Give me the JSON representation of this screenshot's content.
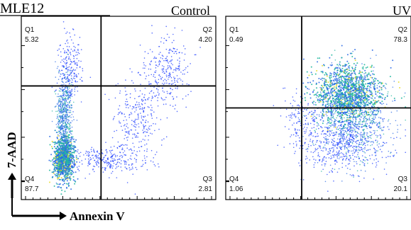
{
  "figure": {
    "cell_line": "MLE12",
    "x_axis_label": "Annexin V",
    "y_axis_label": "7-AAD"
  },
  "chart_data": [
    {
      "type": "scatter",
      "title": "Control",
      "xlabel": "Annexin V",
      "ylabel": "7-AAD",
      "quadrants": [
        {
          "name": "Q1",
          "value": "5.32"
        },
        {
          "name": "Q2",
          "value": "4.20"
        },
        {
          "name": "Q3",
          "value": "2.81"
        },
        {
          "name": "Q4",
          "value": "87.7"
        }
      ],
      "clusters": [
        {
          "x": 0.22,
          "y": 0.22,
          "sx": 0.025,
          "sy": 0.06,
          "n": 1100,
          "mode": "dense"
        },
        {
          "x": 0.22,
          "y": 0.45,
          "sx": 0.02,
          "sy": 0.12,
          "n": 650,
          "mode": "medium"
        },
        {
          "x": 0.25,
          "y": 0.72,
          "sx": 0.03,
          "sy": 0.1,
          "n": 220,
          "mode": "sparse"
        },
        {
          "x": 0.44,
          "y": 0.22,
          "sx": 0.09,
          "sy": 0.04,
          "n": 260,
          "mode": "sparse"
        },
        {
          "x": 0.6,
          "y": 0.43,
          "sx": 0.06,
          "sy": 0.13,
          "n": 280,
          "mode": "sparse"
        },
        {
          "x": 0.75,
          "y": 0.7,
          "sx": 0.06,
          "sy": 0.1,
          "n": 280,
          "mode": "sparse"
        }
      ],
      "gate_x_fraction": 0.41,
      "gate_y_fraction": 0.38
    },
    {
      "type": "scatter",
      "title": "UV",
      "xlabel": "Annexin V",
      "ylabel": "7-AAD",
      "quadrants": [
        {
          "name": "Q1",
          "value": "0.49"
        },
        {
          "name": "Q2",
          "value": "78.3"
        },
        {
          "name": "Q3",
          "value": "20.1"
        },
        {
          "name": "Q4",
          "value": "1.06"
        }
      ],
      "clusters": [
        {
          "x": 0.66,
          "y": 0.58,
          "sx": 0.09,
          "sy": 0.08,
          "n": 1300,
          "mode": "dense"
        },
        {
          "x": 0.69,
          "y": 0.45,
          "sx": 0.1,
          "sy": 0.12,
          "n": 800,
          "mode": "medium"
        },
        {
          "x": 0.63,
          "y": 0.3,
          "sx": 0.12,
          "sy": 0.08,
          "n": 500,
          "mode": "sparse"
        },
        {
          "x": 0.42,
          "y": 0.43,
          "sx": 0.06,
          "sy": 0.08,
          "n": 160,
          "mode": "sparse"
        }
      ],
      "gate_x_fraction": 0.41,
      "gate_y_fraction": 0.5
    }
  ],
  "style": {
    "palette": {
      "axis": "#000000",
      "gate": "#000000",
      "sparse": "#1c3cff",
      "medium": "#2f6de6",
      "dense": "#24b7a0",
      "hot": "#e6dd2e"
    }
  }
}
